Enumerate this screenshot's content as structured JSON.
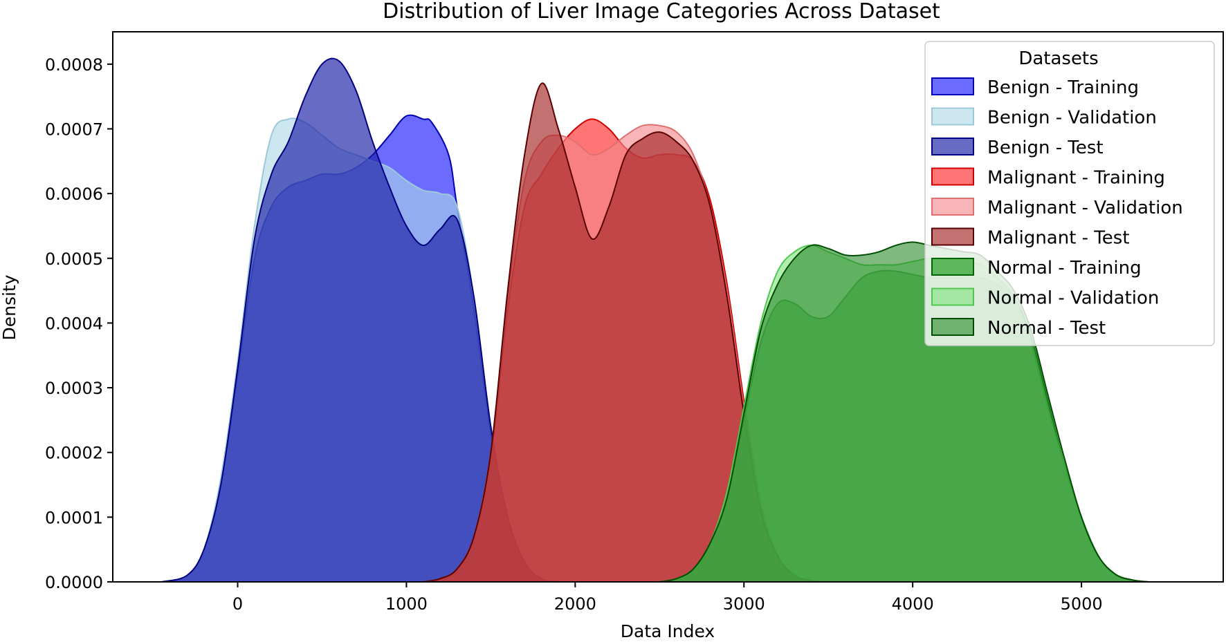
{
  "chart_data": {
    "type": "area",
    "title": "Distribution of Liver Image Categories Across Dataset",
    "xlabel": "Data Index",
    "ylabel": "Density",
    "xlim": [
      -740,
      5840
    ],
    "ylim": [
      0,
      0.00085
    ],
    "x_ticks": [
      0,
      1000,
      2000,
      3000,
      4000,
      5000
    ],
    "x_tick_labels": [
      "0",
      "1000",
      "2000",
      "3000",
      "4000",
      "5000"
    ],
    "y_ticks": [
      0,
      0.0001,
      0.0002,
      0.0003,
      0.0004,
      0.0005,
      0.0006,
      0.0007,
      0.0008
    ],
    "y_tick_labels": [
      "0.0000",
      "0.0001",
      "0.0002",
      "0.0003",
      "0.0004",
      "0.0005",
      "0.0006",
      "0.0007",
      "0.0008"
    ],
    "grid": false,
    "legend": {
      "title": "Datasets",
      "placement": "top-right"
    },
    "series": [
      {
        "name": "Benign - Training",
        "fill": "#1f1fff",
        "edge": "#0000b4",
        "opacity": 0.66,
        "points": [
          [
            -450,
            0
          ],
          [
            -300,
            1e-05
          ],
          [
            -200,
            5e-05
          ],
          [
            -100,
            0.00015
          ],
          [
            0,
            0.00032
          ],
          [
            100,
            0.0005
          ],
          [
            200,
            0.00058
          ],
          [
            300,
            0.00061
          ],
          [
            400,
            0.00062
          ],
          [
            500,
            0.00063
          ],
          [
            600,
            0.00063
          ],
          [
            700,
            0.00064
          ],
          [
            800,
            0.00066
          ],
          [
            900,
            0.00069
          ],
          [
            1000,
            0.00072
          ],
          [
            1100,
            0.000715
          ],
          [
            1150,
            0.00071
          ],
          [
            1250,
            0.00066
          ],
          [
            1300,
            0.00058
          ],
          [
            1400,
            0.00042
          ],
          [
            1500,
            0.00023
          ],
          [
            1600,
            0.0001
          ],
          [
            1700,
            3e-05
          ],
          [
            1800,
            5e-06
          ],
          [
            1900,
            0
          ]
        ]
      },
      {
        "name": "Benign - Validation",
        "fill": "#add8e6",
        "edge": "#9dc8dc",
        "opacity": 0.62,
        "points": [
          [
            -450,
            0
          ],
          [
            -300,
            1e-05
          ],
          [
            -200,
            5e-05
          ],
          [
            -100,
            0.00016
          ],
          [
            0,
            0.00034
          ],
          [
            100,
            0.00055
          ],
          [
            200,
            0.00069
          ],
          [
            300,
            0.000715
          ],
          [
            400,
            0.00071
          ],
          [
            500,
            0.00069
          ],
          [
            600,
            0.00067
          ],
          [
            700,
            0.00066
          ],
          [
            800,
            0.00065
          ],
          [
            900,
            0.00064
          ],
          [
            1000,
            0.00062
          ],
          [
            1100,
            0.000605
          ],
          [
            1200,
            0.0006
          ],
          [
            1300,
            0.00058
          ],
          [
            1400,
            0.00044
          ],
          [
            1500,
            0.00024
          ],
          [
            1600,
            0.0001
          ],
          [
            1700,
            3e-05
          ],
          [
            1800,
            5e-06
          ],
          [
            1900,
            0
          ]
        ]
      },
      {
        "name": "Benign - Test",
        "fill": "#1a1ea6",
        "edge": "#000080",
        "opacity": 0.66,
        "points": [
          [
            -450,
            0
          ],
          [
            -300,
            1e-05
          ],
          [
            -200,
            5e-05
          ],
          [
            -100,
            0.00015
          ],
          [
            0,
            0.00033
          ],
          [
            100,
            0.00053
          ],
          [
            200,
            0.00063
          ],
          [
            300,
            0.00068
          ],
          [
            400,
            0.00075
          ],
          [
            500,
            0.0008
          ],
          [
            600,
            0.000805
          ],
          [
            700,
            0.00076
          ],
          [
            800,
            0.00068
          ],
          [
            900,
            0.00061
          ],
          [
            1000,
            0.00055
          ],
          [
            1100,
            0.00052
          ],
          [
            1200,
            0.000545
          ],
          [
            1300,
            0.00056
          ],
          [
            1400,
            0.00044
          ],
          [
            1500,
            0.00024
          ],
          [
            1600,
            0.0001
          ],
          [
            1700,
            3e-05
          ],
          [
            1800,
            5e-06
          ],
          [
            1900,
            0
          ]
        ]
      },
      {
        "name": "Malignant - Training",
        "fill": "#ff2020",
        "edge": "#d00000",
        "opacity": 0.62,
        "points": [
          [
            1100,
            0
          ],
          [
            1200,
            5e-06
          ],
          [
            1300,
            2e-05
          ],
          [
            1400,
            7e-05
          ],
          [
            1500,
            0.00019
          ],
          [
            1600,
            0.00042
          ],
          [
            1700,
            0.00058
          ],
          [
            1800,
            0.00063
          ],
          [
            1900,
            0.00067
          ],
          [
            2000,
            0.0007
          ],
          [
            2100,
            0.000715
          ],
          [
            2200,
            0.0007
          ],
          [
            2300,
            0.00067
          ],
          [
            2400,
            0.000655
          ],
          [
            2500,
            0.00066
          ],
          [
            2600,
            0.00066
          ],
          [
            2700,
            0.00065
          ],
          [
            2800,
            0.00059
          ],
          [
            2900,
            0.00046
          ],
          [
            3000,
            0.00028
          ],
          [
            3100,
            0.00012
          ],
          [
            3200,
            4e-05
          ],
          [
            3300,
            1e-05
          ],
          [
            3400,
            2e-06
          ],
          [
            3500,
            0
          ]
        ]
      },
      {
        "name": "Malignant - Validation",
        "fill": "#f4888c",
        "edge": "#e07070",
        "opacity": 0.62,
        "points": [
          [
            1100,
            0
          ],
          [
            1200,
            5e-06
          ],
          [
            1300,
            2e-05
          ],
          [
            1400,
            7e-05
          ],
          [
            1500,
            0.0002
          ],
          [
            1600,
            0.00044
          ],
          [
            1700,
            0.00062
          ],
          [
            1800,
            0.00068
          ],
          [
            1900,
            0.00069
          ],
          [
            2000,
            0.00068
          ],
          [
            2100,
            0.00066
          ],
          [
            2200,
            0.00067
          ],
          [
            2300,
            0.00069
          ],
          [
            2400,
            0.000705
          ],
          [
            2500,
            0.000705
          ],
          [
            2600,
            0.000695
          ],
          [
            2700,
            0.00066
          ],
          [
            2800,
            0.00058
          ],
          [
            2900,
            0.00045
          ],
          [
            3000,
            0.00027
          ],
          [
            3100,
            0.00012
          ],
          [
            3200,
            4e-05
          ],
          [
            3300,
            1e-05
          ],
          [
            3400,
            2e-06
          ],
          [
            3500,
            0
          ]
        ]
      },
      {
        "name": "Malignant - Test",
        "fill": "#a52828",
        "edge": "#5a0000",
        "opacity": 0.66,
        "points": [
          [
            1100,
            0
          ],
          [
            1200,
            5e-06
          ],
          [
            1300,
            2e-05
          ],
          [
            1400,
            7e-05
          ],
          [
            1500,
            0.0002
          ],
          [
            1600,
            0.00045
          ],
          [
            1700,
            0.00066
          ],
          [
            1800,
            0.00077
          ],
          [
            1900,
            0.0007
          ],
          [
            2000,
            0.00061
          ],
          [
            2100,
            0.00053
          ],
          [
            2200,
            0.00058
          ],
          [
            2300,
            0.00066
          ],
          [
            2400,
            0.000685
          ],
          [
            2500,
            0.000695
          ],
          [
            2600,
            0.00068
          ],
          [
            2700,
            0.00065
          ],
          [
            2800,
            0.00058
          ],
          [
            2900,
            0.00044
          ],
          [
            3000,
            0.00026
          ],
          [
            3100,
            0.00011
          ],
          [
            3200,
            4e-05
          ],
          [
            3300,
            1e-05
          ],
          [
            3400,
            2e-06
          ],
          [
            3500,
            0
          ]
        ]
      },
      {
        "name": "Normal - Training",
        "fill": "#1a9a1a",
        "edge": "#006400",
        "opacity": 0.66,
        "points": [
          [
            2500,
            0
          ],
          [
            2600,
            5e-06
          ],
          [
            2700,
            2e-05
          ],
          [
            2800,
            6e-05
          ],
          [
            2900,
            0.00013
          ],
          [
            3000,
            0.00025
          ],
          [
            3100,
            0.00037
          ],
          [
            3200,
            0.00043
          ],
          [
            3300,
            0.00043
          ],
          [
            3400,
            0.00041
          ],
          [
            3500,
            0.00041
          ],
          [
            3600,
            0.00044
          ],
          [
            3700,
            0.00047
          ],
          [
            3800,
            0.00048
          ],
          [
            3900,
            0.00048
          ],
          [
            4000,
            0.000475
          ],
          [
            4100,
            0.00047
          ],
          [
            4200,
            0.00047
          ],
          [
            4300,
            0.00047
          ],
          [
            4400,
            0.00047
          ],
          [
            4500,
            0.00046
          ],
          [
            4600,
            0.00044
          ],
          [
            4700,
            0.00038
          ],
          [
            4800,
            0.00028
          ],
          [
            4900,
            0.00018
          ],
          [
            5000,
            0.0001
          ],
          [
            5100,
            4e-05
          ],
          [
            5200,
            1.2e-05
          ],
          [
            5300,
            3e-06
          ],
          [
            5400,
            0
          ]
        ]
      },
      {
        "name": "Normal - Validation",
        "fill": "#7ee27e",
        "edge": "#50c850",
        "opacity": 0.6,
        "points": [
          [
            2500,
            0
          ],
          [
            2600,
            5e-06
          ],
          [
            2700,
            2e-05
          ],
          [
            2800,
            6e-05
          ],
          [
            2900,
            0.00014
          ],
          [
            3000,
            0.00027
          ],
          [
            3100,
            0.0004
          ],
          [
            3200,
            0.00048
          ],
          [
            3300,
            0.00051
          ],
          [
            3400,
            0.00052
          ],
          [
            3500,
            0.00051
          ],
          [
            3600,
            0.0005
          ],
          [
            3700,
            0.00049
          ],
          [
            3800,
            0.00049
          ],
          [
            3900,
            0.00049
          ],
          [
            4000,
            0.000495
          ],
          [
            4100,
            0.0005
          ],
          [
            4200,
            0.0005
          ],
          [
            4300,
            0.000495
          ],
          [
            4400,
            0.00049
          ],
          [
            4500,
            0.00047
          ],
          [
            4600,
            0.00044
          ],
          [
            4700,
            0.00037
          ],
          [
            4800,
            0.00027
          ],
          [
            4900,
            0.00018
          ],
          [
            5000,
            0.0001
          ],
          [
            5100,
            4e-05
          ],
          [
            5200,
            1.2e-05
          ],
          [
            5300,
            3e-06
          ],
          [
            5400,
            0
          ]
        ]
      },
      {
        "name": "Normal - Test",
        "fill": "#2a8a2a",
        "edge": "#004d00",
        "opacity": 0.6,
        "points": [
          [
            2500,
            0
          ],
          [
            2600,
            5e-06
          ],
          [
            2700,
            2e-05
          ],
          [
            2800,
            6e-05
          ],
          [
            2900,
            0.00013
          ],
          [
            3000,
            0.00026
          ],
          [
            3100,
            0.00039
          ],
          [
            3200,
            0.00046
          ],
          [
            3300,
            0.0005
          ],
          [
            3400,
            0.00052
          ],
          [
            3500,
            0.000515
          ],
          [
            3600,
            0.000505
          ],
          [
            3700,
            0.000505
          ],
          [
            3800,
            0.00051
          ],
          [
            3900,
            0.00052
          ],
          [
            4000,
            0.000525
          ],
          [
            4100,
            0.00052
          ],
          [
            4200,
            0.000515
          ],
          [
            4300,
            0.00051
          ],
          [
            4400,
            0.000505
          ],
          [
            4500,
            0.00048
          ],
          [
            4600,
            0.00045
          ],
          [
            4700,
            0.00039
          ],
          [
            4800,
            0.00029
          ],
          [
            4900,
            0.00019
          ],
          [
            5000,
            0.0001
          ],
          [
            5100,
            4e-05
          ],
          [
            5200,
            1.2e-05
          ],
          [
            5300,
            3e-06
          ],
          [
            5400,
            0
          ]
        ]
      }
    ]
  }
}
